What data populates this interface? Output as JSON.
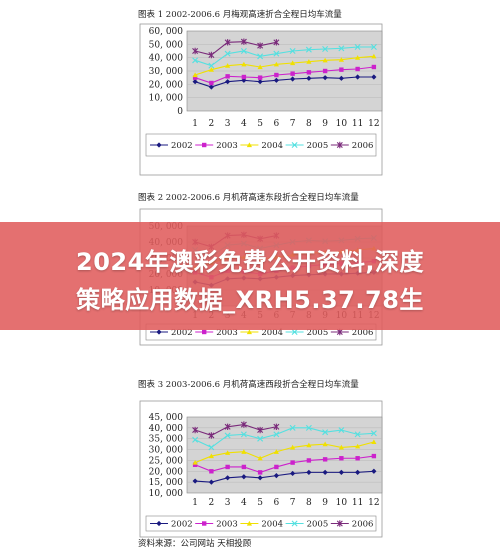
{
  "banner": {
    "line1": "2024年澳彩免费公开资料,深度",
    "line2": "策略应用数据_XRH5.37.78生"
  },
  "source_note": "资料来源：公司网站  天相投顾",
  "chart_data": [
    {
      "type": "line",
      "title": "图表 1    2002-2006.6 月梅观高速折合全程日均车流量",
      "categories": [
        "1",
        "2",
        "3",
        "4",
        "5",
        "6",
        "7",
        "8",
        "9",
        "10",
        "11",
        "12"
      ],
      "ylim": [
        0,
        60000
      ],
      "yticks": [
        0,
        10000,
        20000,
        30000,
        40000,
        50000,
        60000
      ],
      "ytick_labels": [
        "0",
        "10, 000",
        "20, 000",
        "30, 000",
        "40, 000",
        "50, 000",
        "60, 000"
      ],
      "grid": true,
      "legend_position": "bottom",
      "series": [
        {
          "name": "2002",
          "color": "#1a1a80",
          "marker": "diamond",
          "values": [
            22000,
            18000,
            22000,
            23000,
            22000,
            23000,
            24000,
            24500,
            25000,
            24500,
            25500,
            25500
          ]
        },
        {
          "name": "2003",
          "color": "#cc22cc",
          "marker": "square",
          "values": [
            25000,
            21000,
            26000,
            25500,
            25000,
            27000,
            28000,
            29000,
            30000,
            31000,
            31500,
            33000
          ]
        },
        {
          "name": "2004",
          "color": "#f0e000",
          "marker": "triangle",
          "values": [
            27000,
            31000,
            34000,
            35000,
            33000,
            35000,
            36000,
            37000,
            38000,
            38500,
            40000,
            41000
          ]
        },
        {
          "name": "2005",
          "color": "#55e0e0",
          "marker": "x",
          "values": [
            38000,
            34000,
            43000,
            45000,
            41000,
            43000,
            45000,
            46000,
            46500,
            47000,
            48000,
            48000
          ]
        },
        {
          "name": "2006",
          "color": "#7a2a7a",
          "marker": "star",
          "values": [
            45000,
            42000,
            51500,
            52000,
            49000,
            51500,
            null,
            null,
            null,
            null,
            null,
            null
          ]
        }
      ]
    },
    {
      "type": "line",
      "title": "图表 2    2002-2006.6 月机荷高速东段折合全程日均车流量",
      "categories": [
        "1",
        "2",
        "3",
        "4",
        "5",
        "6",
        "7",
        "8",
        "9",
        "10",
        "11",
        "12"
      ],
      "ylim": [
        0,
        50000
      ],
      "yticks": [
        0,
        10000,
        20000,
        30000,
        40000,
        50000
      ],
      "ytick_labels": [
        "0",
        "10, 000",
        "20, 000",
        "30, 000",
        "40, 000",
        "50, 000"
      ],
      "grid": true,
      "legend_position": "bottom",
      "series": [
        {
          "name": "2002",
          "color": "#1a1a80",
          "marker": "diamond",
          "values": [
            15000,
            13000,
            17000,
            17500,
            17000,
            18000,
            19000,
            19500,
            20000,
            20000,
            20500,
            21000
          ]
        },
        {
          "name": "2003",
          "color": "#cc22cc",
          "marker": "square",
          "values": [
            21000,
            18000,
            22000,
            21500,
            20000,
            22000,
            24000,
            25000,
            26000,
            26500,
            27000,
            28000
          ]
        },
        {
          "name": "2004",
          "color": "#f0e000",
          "marker": "triangle",
          "values": [
            24000,
            27000,
            30000,
            30500,
            29000,
            30500,
            32000,
            33000,
            33500,
            34000,
            35000,
            36000
          ]
        },
        {
          "name": "2005",
          "color": "#55e0e0",
          "marker": "x",
          "values": [
            35000,
            31000,
            38000,
            39000,
            36000,
            38000,
            40000,
            41000,
            40500,
            41000,
            42000,
            42500
          ]
        },
        {
          "name": "2006",
          "color": "#7a2a7a",
          "marker": "star",
          "values": [
            40000,
            37000,
            44000,
            44500,
            42000,
            44000,
            null,
            null,
            null,
            null,
            null,
            null
          ]
        }
      ]
    },
    {
      "type": "line",
      "title": "图表 3    2003-2006.6 月机荷高速西段折合全程日均车流量",
      "categories": [
        "1",
        "2",
        "3",
        "4",
        "5",
        "6",
        "7",
        "8",
        "9",
        "10",
        "11",
        "12"
      ],
      "ylim": [
        10000,
        45000
      ],
      "yticks": [
        10000,
        15000,
        20000,
        25000,
        30000,
        35000,
        40000,
        45000
      ],
      "ytick_labels": [
        "10, 000",
        "15, 000",
        "20, 000",
        "25, 000",
        "30, 000",
        "35, 000",
        "40, 000",
        "45, 000"
      ],
      "grid": true,
      "legend_position": "bottom",
      "series": [
        {
          "name": "2002",
          "color": "#1a1a80",
          "marker": "diamond",
          "values": [
            15500,
            15000,
            17000,
            17500,
            17000,
            18000,
            19000,
            19500,
            19500,
            19500,
            19500,
            20000
          ]
        },
        {
          "name": "2003",
          "color": "#cc22cc",
          "marker": "square",
          "values": [
            23000,
            20000,
            22000,
            22000,
            19500,
            22000,
            24000,
            25000,
            25500,
            26000,
            26000,
            27000
          ]
        },
        {
          "name": "2004",
          "color": "#f0e000",
          "marker": "triangle",
          "values": [
            24000,
            27000,
            28500,
            29000,
            26000,
            29000,
            31000,
            32000,
            32500,
            31000,
            31500,
            33500
          ]
        },
        {
          "name": "2005",
          "color": "#55e0e0",
          "marker": "x",
          "values": [
            34500,
            31000,
            36500,
            37000,
            35000,
            37000,
            40000,
            40000,
            38000,
            39000,
            37000,
            37500
          ]
        },
        {
          "name": "2006",
          "color": "#7a2a7a",
          "marker": "star",
          "values": [
            39000,
            36500,
            40500,
            41500,
            39000,
            40500,
            null,
            null,
            null,
            null,
            null,
            null
          ]
        }
      ]
    }
  ]
}
